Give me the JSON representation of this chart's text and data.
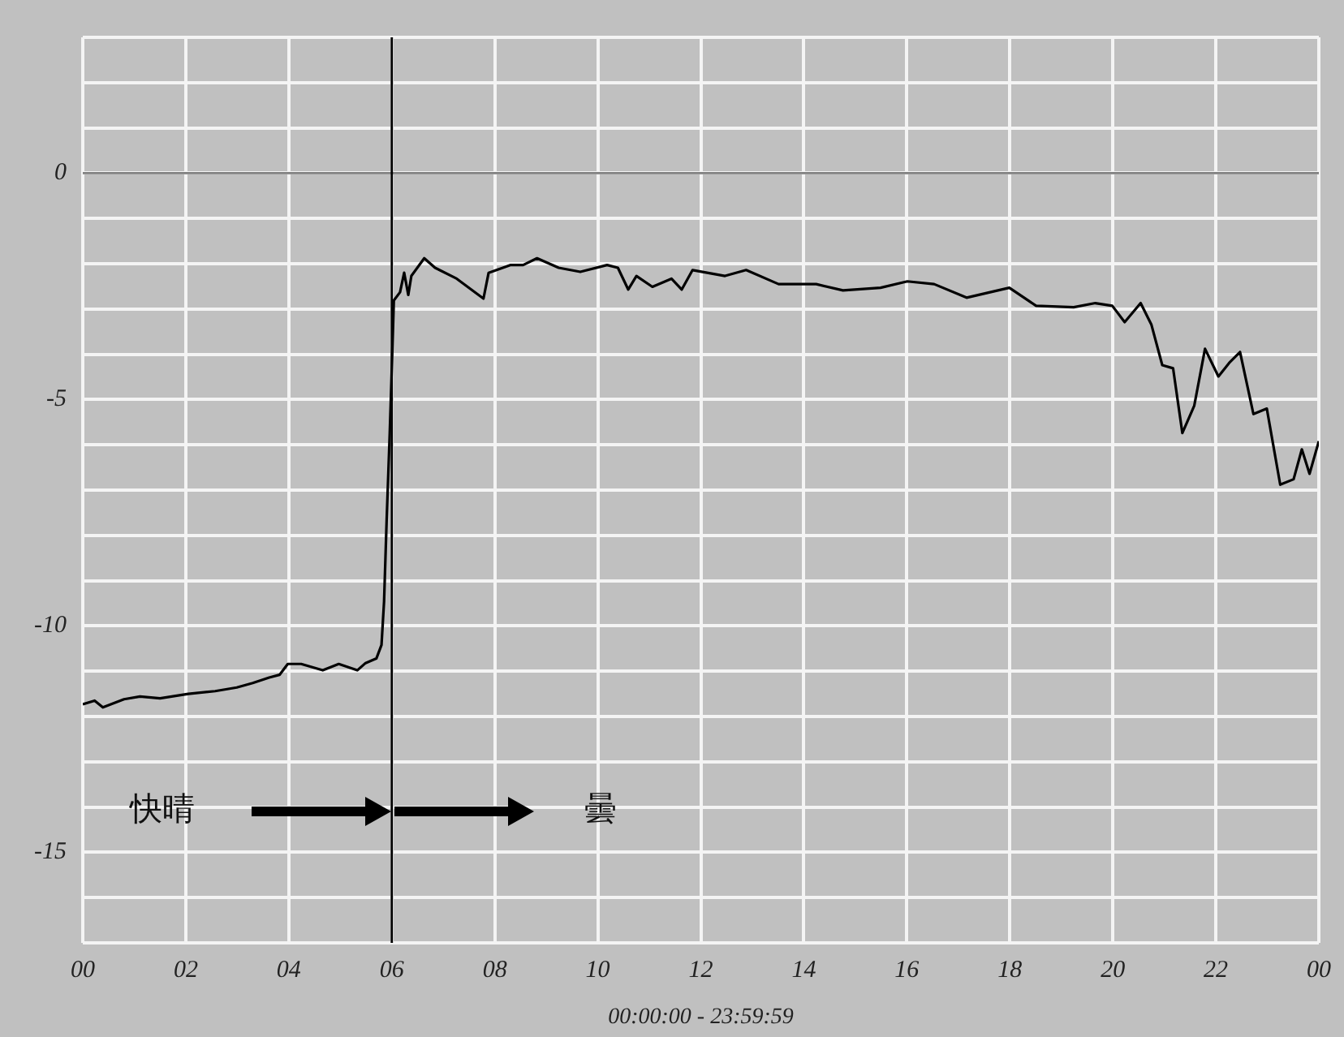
{
  "chart_data": {
    "type": "line",
    "xlabel": "00:00:00 - 23:59:59",
    "xlim": [
      0,
      24
    ],
    "xticks": [
      {
        "value": 0,
        "label": "00"
      },
      {
        "value": 2,
        "label": "02"
      },
      {
        "value": 4,
        "label": "04"
      },
      {
        "value": 6,
        "label": "06"
      },
      {
        "value": 8,
        "label": "08"
      },
      10,
      12,
      14,
      16,
      18,
      20,
      22,
      {
        "value": 24,
        "label": "00"
      }
    ],
    "ylim": [
      -17,
      3
    ],
    "yticks": [
      {
        "value": -17,
        "label": null
      },
      {
        "value": -16,
        "label": null
      },
      -15,
      {
        "value": -14,
        "label": null
      },
      {
        "value": -13,
        "label": null
      },
      {
        "value": -12,
        "label": null
      },
      {
        "value": -11,
        "label": null
      },
      -10,
      {
        "value": -9,
        "label": null
      },
      {
        "value": -8,
        "label": null
      },
      {
        "value": -7,
        "label": null
      },
      {
        "value": -6,
        "label": null
      },
      -5,
      {
        "value": -4,
        "label": null
      },
      {
        "value": -3,
        "label": null
      },
      {
        "value": -2,
        "label": null
      },
      {
        "value": -1,
        "label": null
      },
      0,
      {
        "value": 1,
        "label": null
      },
      {
        "value": 2,
        "label": null
      },
      {
        "value": 3,
        "label": null
      }
    ],
    "grid": true,
    "legend": false,
    "ref_lines": [
      {
        "axis": "y",
        "value": 0,
        "color": "#808080"
      },
      {
        "axis": "x",
        "value": 6,
        "color": "#000000"
      }
    ],
    "annotations": [
      "快晴",
      "曇"
    ],
    "series": [
      {
        "color": "#000000",
        "x": [
          0,
          0.23,
          0.39,
          0.8,
          1.11,
          1.5,
          2.05,
          2.57,
          2.99,
          3.3,
          3.62,
          3.82,
          3.98,
          4.24,
          4.66,
          4.97,
          5.33,
          5.49,
          5.7,
          5.8,
          5.85,
          5.9,
          5.96,
          6.01,
          6.04,
          6.16,
          6.24,
          6.32,
          6.38,
          6.63,
          6.84,
          7.26,
          7.78,
          7.88,
          8.3,
          8.55,
          8.82,
          9.24,
          9.66,
          10.18,
          10.39,
          10.59,
          10.75,
          11.06,
          11.43,
          11.63,
          11.84,
          12.47,
          12.88,
          13.51,
          14.24,
          14.76,
          15.49,
          16.01,
          16.53,
          17.16,
          17.99,
          18.51,
          19.24,
          19.66,
          19.99,
          20.23,
          20.54,
          20.75,
          20.96,
          21.17,
          21.35,
          21.58,
          21.79,
          22.05,
          22.26,
          22.47,
          22.73,
          22.99,
          23.25,
          23.51,
          23.67,
          23.82,
          24
        ],
        "values": [
          -11.73,
          -11.65,
          -11.8,
          -11.62,
          -11.56,
          -11.6,
          -11.5,
          -11.44,
          -11.36,
          -11.26,
          -11.14,
          -11.08,
          -10.84,
          -10.84,
          -10.98,
          -10.84,
          -10.98,
          -10.82,
          -10.72,
          -10.42,
          -9.46,
          -7.66,
          -5.74,
          -3.95,
          -2.81,
          -2.63,
          -2.2,
          -2.69,
          -2.27,
          -1.88,
          -2.09,
          -2.33,
          -2.77,
          -2.2,
          -2.03,
          -2.03,
          -1.88,
          -2.09,
          -2.18,
          -2.03,
          -2.09,
          -2.57,
          -2.27,
          -2.51,
          -2.33,
          -2.57,
          -2.14,
          -2.27,
          -2.14,
          -2.45,
          -2.45,
          -2.59,
          -2.53,
          -2.39,
          -2.45,
          -2.75,
          -2.53,
          -2.93,
          -2.96,
          -2.87,
          -2.93,
          -3.29,
          -2.87,
          -3.35,
          -4.24,
          -4.31,
          -5.74,
          -5.14,
          -3.88,
          -4.49,
          -4.19,
          -3.95,
          -5.32,
          -5.2,
          -6.88,
          -6.76,
          -6.1,
          -6.64,
          -5.92
        ]
      }
    ]
  }
}
